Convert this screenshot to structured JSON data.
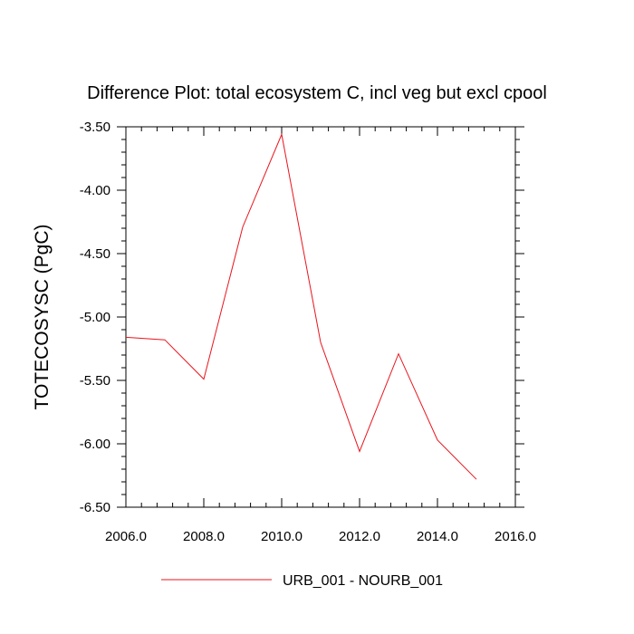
{
  "chart_data": {
    "type": "line",
    "title": "Difference Plot: total ecosystem C, incl veg but excl cpool",
    "xlabel": "",
    "ylabel": "TOTECOSYSC  (PgC)",
    "xlim": [
      2006.0,
      2016.0
    ],
    "ylim": [
      -6.5,
      -3.5
    ],
    "x_ticks": [
      "2006.0",
      "2008.0",
      "2010.0",
      "2012.0",
      "2014.0",
      "2016.0"
    ],
    "y_ticks": [
      "-3.50",
      "-4.00",
      "-4.50",
      "-5.00",
      "-5.50",
      "-6.00",
      "-6.50"
    ],
    "grid": false,
    "legend_position": "bottom-center",
    "series": [
      {
        "name": "URB_001 - NOURB_001",
        "color": "#e8141c",
        "x": [
          2006,
          2007,
          2008,
          2009,
          2010,
          2011,
          2012,
          2013,
          2014,
          2015
        ],
        "y": [
          -5.16,
          -5.18,
          -5.49,
          -4.29,
          -3.56,
          -5.2,
          -6.06,
          -5.29,
          -5.97,
          -6.28
        ]
      }
    ]
  }
}
